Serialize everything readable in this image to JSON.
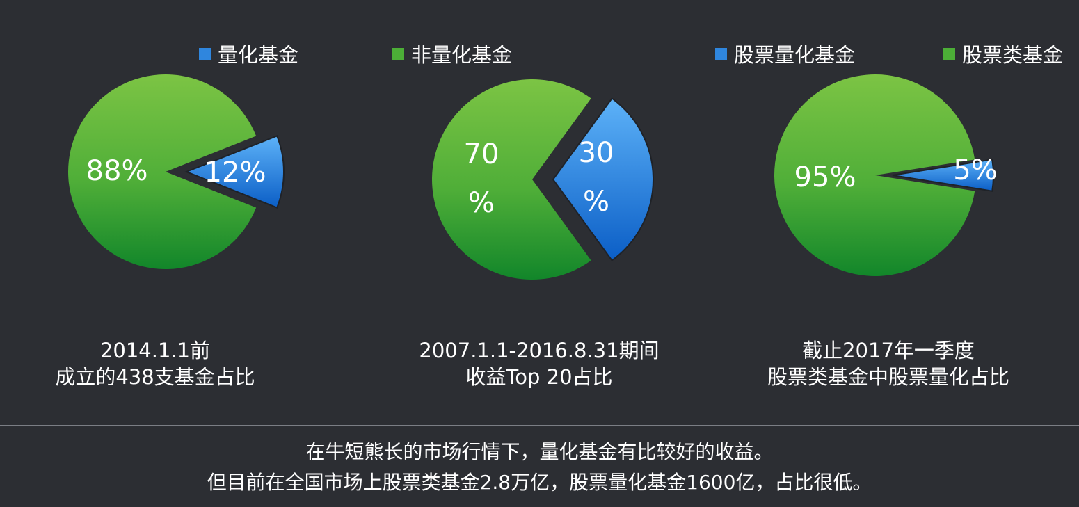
{
  "colors": {
    "quant": "#2f86de",
    "nonquant": "#4cae37",
    "background": "#2c2e33"
  },
  "chart_data": [
    {
      "type": "pie",
      "legend": [
        "量化基金",
        "非量化基金"
      ],
      "slices": [
        {
          "name": "非量化基金",
          "value": 88,
          "label": [
            "88%"
          ]
        },
        {
          "name": "量化基金",
          "value": 12,
          "label": [
            "12%"
          ]
        }
      ],
      "caption": [
        "2014.1.1前",
        "成立的438支基金占比"
      ]
    },
    {
      "type": "pie",
      "slices": [
        {
          "name": "非量化基金",
          "value": 70,
          "label": [
            "70",
            "%"
          ]
        },
        {
          "name": "量化基金",
          "value": 30,
          "label": [
            "30",
            "%"
          ]
        }
      ],
      "caption": [
        "2007.1.1-2016.8.31期间",
        "收益Top 20占比"
      ]
    },
    {
      "type": "pie",
      "legend": [
        "股票量化基金",
        "股票类基金"
      ],
      "slices": [
        {
          "name": "股票类基金",
          "value": 95,
          "label": [
            "95%"
          ]
        },
        {
          "name": "股票量化基金",
          "value": 5,
          "label": [
            "5%"
          ]
        }
      ],
      "caption": [
        "截止2017年一季度",
        "股票类基金中股票量化占比"
      ]
    }
  ],
  "summary": [
    "在牛短熊长的市场行情下，量化基金有比较好的收益。",
    "但目前在全国市场上股票类基金2.8万亿，股票量化基金1600亿，占比很低。"
  ]
}
